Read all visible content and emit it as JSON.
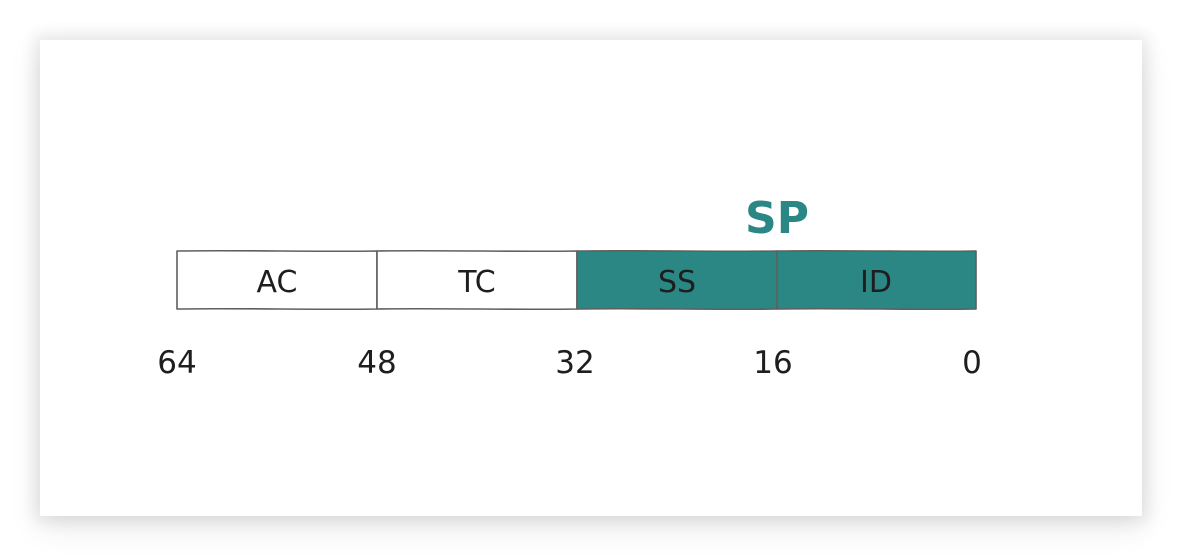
{
  "register": {
    "fields": [
      {
        "label": "AC",
        "highlighted": false
      },
      {
        "label": "TC",
        "highlighted": false
      },
      {
        "label": "SS",
        "highlighted": true
      },
      {
        "label": "ID",
        "highlighted": true
      }
    ],
    "bit_positions": [
      "64",
      "48",
      "32",
      "16",
      "0"
    ],
    "group_label": "SP"
  },
  "colors": {
    "highlight_fill": "#2b8784",
    "group_label": "#2b8784",
    "stroke": "#5f5f5f",
    "text": "#1e1e1e"
  }
}
